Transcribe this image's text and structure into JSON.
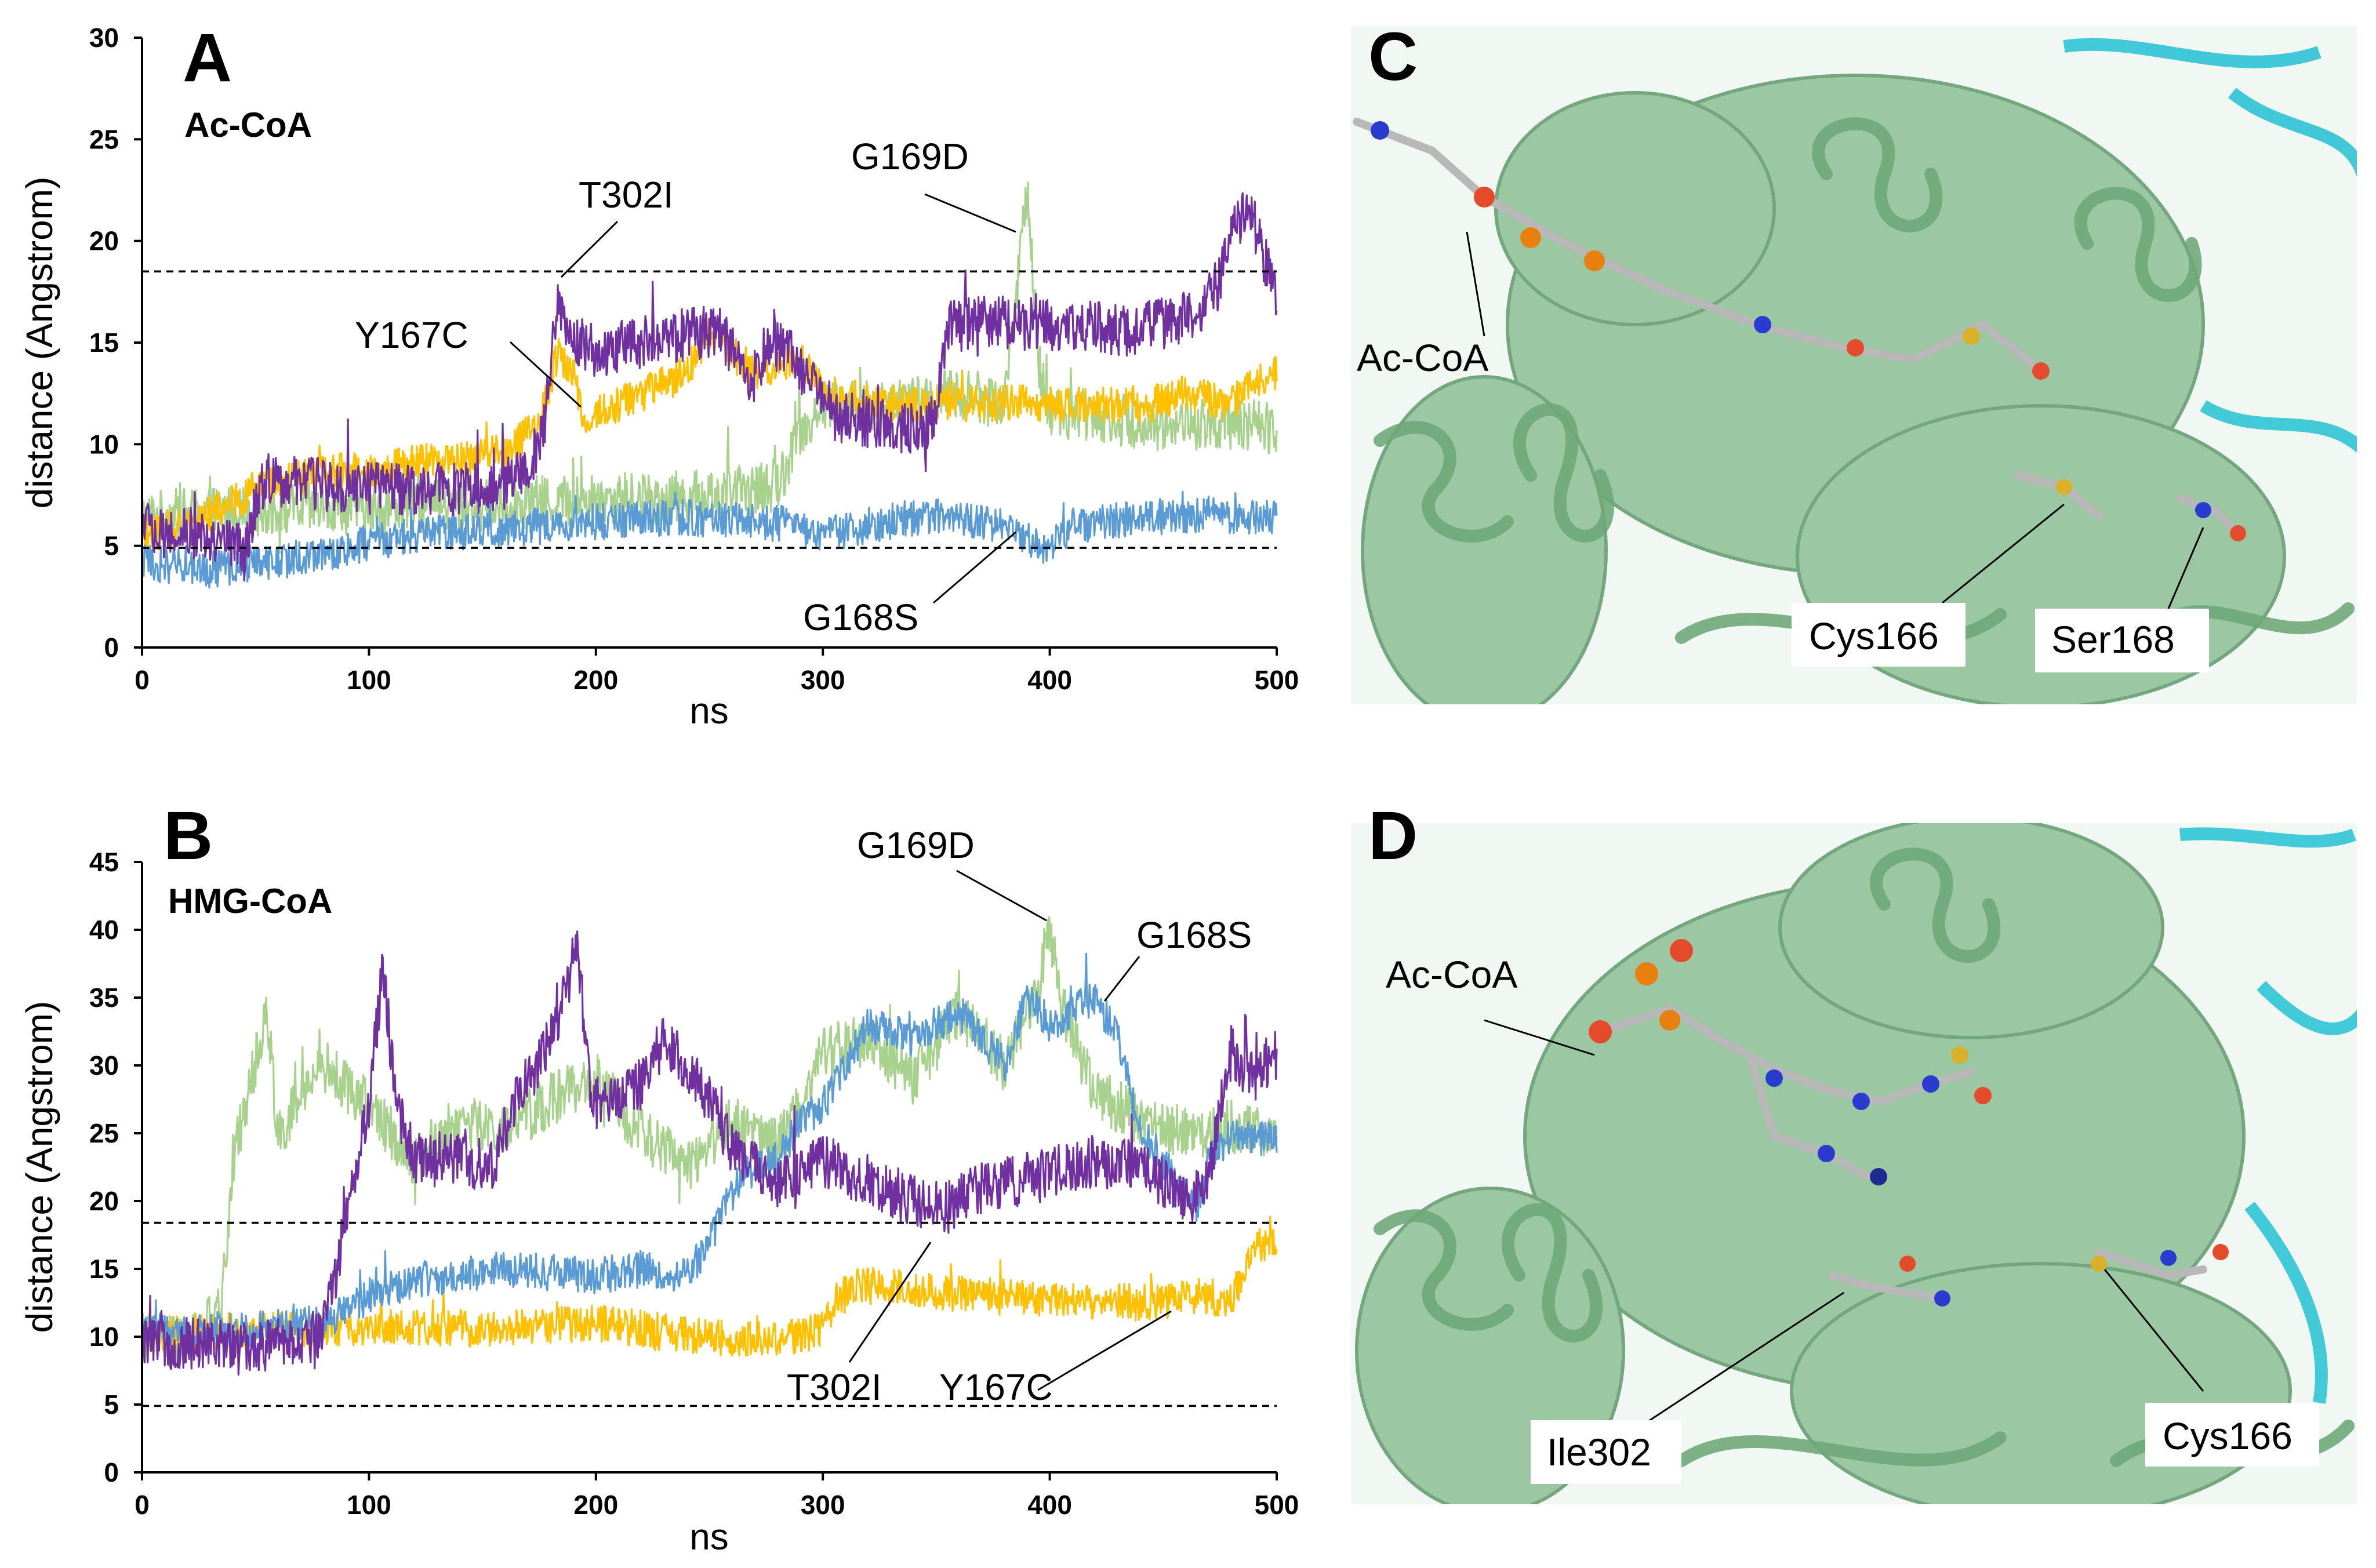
{
  "charts": {
    "A": {
      "letter": "A",
      "subtitle": "Ac-CoA",
      "xlabel": "ns",
      "ylabel": "distance (Angstrom)",
      "xticks": [
        "0",
        "100",
        "200",
        "300",
        "400",
        "500"
      ],
      "yticks": [
        "0",
        "5",
        "10",
        "15",
        "20",
        "25",
        "30"
      ],
      "annotations": {
        "T302I": "T302I",
        "Y167C": "Y167C",
        "G169D": "G169D",
        "G168S": "G168S"
      }
    },
    "B": {
      "letter": "B",
      "subtitle": "HMG-CoA",
      "xlabel": "ns",
      "ylabel": "distance (Angstrom)",
      "xticks": [
        "0",
        "100",
        "200",
        "300",
        "400",
        "500"
      ],
      "yticks": [
        "0",
        "5",
        "10",
        "15",
        "20",
        "25",
        "30",
        "35",
        "40",
        "45"
      ],
      "annotations": {
        "G169D": "G169D",
        "G168S": "G168S",
        "T302I": "T302I",
        "Y167C": "Y167C"
      }
    }
  },
  "panels": {
    "C": {
      "letter": "C",
      "labels": {
        "acoa": "Ac-CoA",
        "cys": "Cys166",
        "ser": "Ser168"
      }
    },
    "D": {
      "letter": "D",
      "labels": {
        "acoa": "Ac-CoA",
        "ile": "Ile302",
        "cys": "Cys166"
      }
    }
  },
  "colors": {
    "T302I": "#7030a0",
    "Y167C": "#ffc000",
    "G169D": "#a9d18e",
    "G168S": "#5b9bd5",
    "protein": "#8dbf96",
    "protein_dark": "#5f9a6a",
    "chain_b": "#2fc4d6"
  },
  "chart_data": [
    {
      "type": "line",
      "panel": "A",
      "x_unit": "ns",
      "xlim": [
        0,
        500
      ],
      "ylim": [
        0,
        30
      ],
      "reference_lines_y": [
        18.5,
        4.9
      ],
      "series": [
        {
          "name": "T302I",
          "color": "#7030a0",
          "points": [
            [
              0,
              5.8
            ],
            [
              20,
              5.6
            ],
            [
              40,
              5.3
            ],
            [
              45,
              4.5
            ],
            [
              50,
              7.0
            ],
            [
              55,
              8.3
            ],
            [
              80,
              8.0
            ],
            [
              100,
              7.8
            ],
            [
              120,
              7.8
            ],
            [
              140,
              7.8
            ],
            [
              160,
              8.0
            ],
            [
              170,
              8.6
            ],
            [
              178,
              11.5
            ],
            [
              183,
              17.2
            ],
            [
              190,
              15.2
            ],
            [
              200,
              14.6
            ],
            [
              220,
              15.0
            ],
            [
              240,
              15.4
            ],
            [
              255,
              15.6
            ],
            [
              265,
              13.5
            ],
            [
              270,
              13.0
            ],
            [
              275,
              15.0
            ],
            [
              285,
              14.5
            ],
            [
              290,
              13.6
            ],
            [
              300,
              12.6
            ],
            [
              305,
              11.3
            ],
            [
              330,
              11.0
            ],
            [
              345,
              10.5
            ],
            [
              350,
              11.5
            ],
            [
              355,
              15.8
            ],
            [
              370,
              16.0
            ],
            [
              400,
              15.9
            ],
            [
              420,
              15.7
            ],
            [
              440,
              15.6
            ],
            [
              450,
              16.0
            ],
            [
              465,
              16.5
            ],
            [
              475,
              18.0
            ],
            [
              480,
              20.5
            ],
            [
              488,
              21.5
            ],
            [
              495,
              19.0
            ],
            [
              500,
              17.5
            ]
          ]
        },
        {
          "name": "Y167C",
          "color": "#ffc000",
          "points": [
            [
              0,
              5.5
            ],
            [
              30,
              6.5
            ],
            [
              50,
              7.8
            ],
            [
              80,
              8.6
            ],
            [
              100,
              8.8
            ],
            [
              130,
              9.2
            ],
            [
              160,
              9.6
            ],
            [
              175,
              11.0
            ],
            [
              183,
              14.4
            ],
            [
              190,
              13.5
            ],
            [
              195,
              11.0
            ],
            [
              200,
              11.5
            ],
            [
              220,
              12.5
            ],
            [
              240,
              13.5
            ],
            [
              250,
              15.5
            ],
            [
              260,
              14.5
            ],
            [
              270,
              13.5
            ],
            [
              280,
              14.0
            ],
            [
              290,
              14.2
            ],
            [
              300,
              12.5
            ],
            [
              330,
              12.0
            ],
            [
              360,
              12.0
            ],
            [
              400,
              12.0
            ],
            [
              420,
              12.0
            ],
            [
              440,
              11.8
            ],
            [
              460,
              12.5
            ],
            [
              470,
              12.2
            ],
            [
              480,
              12.0
            ],
            [
              490,
              13.0
            ],
            [
              500,
              13.5
            ]
          ]
        },
        {
          "name": "G169D",
          "color": "#a9d18e",
          "points": [
            [
              0,
              6.4
            ],
            [
              50,
              6.8
            ],
            [
              100,
              6.8
            ],
            [
              150,
              7.0
            ],
            [
              200,
              7.3
            ],
            [
              240,
              7.4
            ],
            [
              260,
              7.6
            ],
            [
              280,
              8.0
            ],
            [
              290,
              10.5
            ],
            [
              300,
              12.0
            ],
            [
              330,
              11.8
            ],
            [
              360,
              12.5
            ],
            [
              380,
              12.0
            ],
            [
              390,
              22.5
            ],
            [
              395,
              14.0
            ],
            [
              400,
              11.5
            ],
            [
              420,
              11.5
            ],
            [
              440,
              11.0
            ],
            [
              460,
              11.0
            ],
            [
              480,
              11.0
            ],
            [
              500,
              10.8
            ]
          ]
        },
        {
          "name": "G168S",
          "color": "#5b9bd5",
          "points": [
            [
              0,
              4.2
            ],
            [
              30,
              3.8
            ],
            [
              50,
              4.2
            ],
            [
              80,
              4.5
            ],
            [
              100,
              5.2
            ],
            [
              130,
              5.6
            ],
            [
              160,
              5.8
            ],
            [
              200,
              6.2
            ],
            [
              240,
              6.4
            ],
            [
              270,
              6.2
            ],
            [
              290,
              6.0
            ],
            [
              300,
              5.4
            ],
            [
              310,
              5.8
            ],
            [
              340,
              6.4
            ],
            [
              360,
              6.4
            ],
            [
              380,
              6.0
            ],
            [
              400,
              4.8
            ],
            [
              410,
              6.0
            ],
            [
              440,
              6.4
            ],
            [
              470,
              6.6
            ],
            [
              500,
              6.3
            ]
          ]
        }
      ]
    },
    {
      "type": "line",
      "panel": "B",
      "x_unit": "ns",
      "xlim": [
        0,
        500
      ],
      "ylim": [
        0,
        45
      ],
      "reference_lines_y": [
        18.4,
        4.9
      ],
      "series": [
        {
          "name": "T302I",
          "color": "#7030a0",
          "points": [
            [
              0,
              9.5
            ],
            [
              20,
              9.5
            ],
            [
              50,
              9.0
            ],
            [
              60,
              10.0
            ],
            [
              70,
              9.5
            ],
            [
              80,
              10.5
            ],
            [
              85,
              14.0
            ],
            [
              90,
              19.0
            ],
            [
              100,
              27.0
            ],
            [
              106,
              37.5
            ],
            [
              112,
              27.0
            ],
            [
              120,
              23.0
            ],
            [
              140,
              23.0
            ],
            [
              155,
              22.5
            ],
            [
              165,
              28.0
            ],
            [
              175,
              30.0
            ],
            [
              185,
              34.5
            ],
            [
              192,
              39.0
            ],
            [
              198,
              27.0
            ],
            [
              210,
              28.0
            ],
            [
              220,
              28.5
            ],
            [
              230,
              32.0
            ],
            [
              245,
              29.0
            ],
            [
              260,
              24.0
            ],
            [
              280,
              21.5
            ],
            [
              300,
              23.0
            ],
            [
              320,
              21.5
            ],
            [
              340,
              20.0
            ],
            [
              355,
              19.5
            ],
            [
              370,
              21.0
            ],
            [
              400,
              22.0
            ],
            [
              420,
              23.0
            ],
            [
              440,
              22.5
            ],
            [
              455,
              21.0
            ],
            [
              462,
              19.5
            ],
            [
              470,
              22.0
            ],
            [
              480,
              31.0
            ],
            [
              490,
              29.0
            ],
            [
              500,
              31.0
            ]
          ]
        },
        {
          "name": "Y167C",
          "color": "#ffc000",
          "points": [
            [
              0,
              10.2
            ],
            [
              50,
              10.5
            ],
            [
              80,
              10.5
            ],
            [
              100,
              10.8
            ],
            [
              150,
              10.6
            ],
            [
              200,
              11.0
            ],
            [
              250,
              10.0
            ],
            [
              280,
              9.8
            ],
            [
              300,
              10.5
            ],
            [
              305,
              12.5
            ],
            [
              315,
              13.8
            ],
            [
              340,
              13.5
            ],
            [
              370,
              13.0
            ],
            [
              400,
              12.8
            ],
            [
              440,
              12.5
            ],
            [
              470,
              13.0
            ],
            [
              480,
              12.5
            ],
            [
              490,
              17.0
            ],
            [
              500,
              16.5
            ]
          ]
        },
        {
          "name": "G169D",
          "color": "#a9d18e",
          "points": [
            [
              0,
              10.0
            ],
            [
              20,
              9.5
            ],
            [
              35,
              12.0
            ],
            [
              40,
              23.0
            ],
            [
              55,
              34.0
            ],
            [
              60,
              25.0
            ],
            [
              80,
              30.0
            ],
            [
              100,
              27.0
            ],
            [
              120,
              23.0
            ],
            [
              140,
              26.0
            ],
            [
              160,
              25.0
            ],
            [
              180,
              27.5
            ],
            [
              200,
              29.0
            ],
            [
              220,
              25.0
            ],
            [
              240,
              22.5
            ],
            [
              260,
              26.0
            ],
            [
              280,
              24.0
            ],
            [
              300,
              31.0
            ],
            [
              320,
              32.0
            ],
            [
              340,
              29.0
            ],
            [
              360,
              34.0
            ],
            [
              380,
              30.0
            ],
            [
              395,
              36.0
            ],
            [
              400,
              40.0
            ],
            [
              406,
              34.0
            ],
            [
              420,
              28.0
            ],
            [
              440,
              26.0
            ],
            [
              460,
              25.0
            ],
            [
              480,
              25.5
            ],
            [
              500,
              25.0
            ]
          ]
        },
        {
          "name": "G168S",
          "color": "#5b9bd5",
          "points": [
            [
              0,
              10.5
            ],
            [
              50,
              10.5
            ],
            [
              80,
              11.0
            ],
            [
              100,
              13.0
            ],
            [
              120,
              14.2
            ],
            [
              140,
              14.5
            ],
            [
              160,
              15.0
            ],
            [
              200,
              14.5
            ],
            [
              220,
              15.0
            ],
            [
              240,
              14.5
            ],
            [
              250,
              17.0
            ],
            [
              258,
              20.0
            ],
            [
              265,
              22.0
            ],
            [
              280,
              23.0
            ],
            [
              290,
              26.0
            ],
            [
              300,
              27.0
            ],
            [
              320,
              33.0
            ],
            [
              340,
              32.0
            ],
            [
              360,
              34.0
            ],
            [
              380,
              30.0
            ],
            [
              390,
              35.0
            ],
            [
              400,
              33.0
            ],
            [
              420,
              35.0
            ],
            [
              430,
              32.0
            ],
            [
              440,
              25.0
            ],
            [
              460,
              21.0
            ],
            [
              465,
              19.5
            ],
            [
              470,
              23.0
            ],
            [
              480,
              25.0
            ],
            [
              500,
              24.5
            ]
          ]
        }
      ]
    }
  ]
}
